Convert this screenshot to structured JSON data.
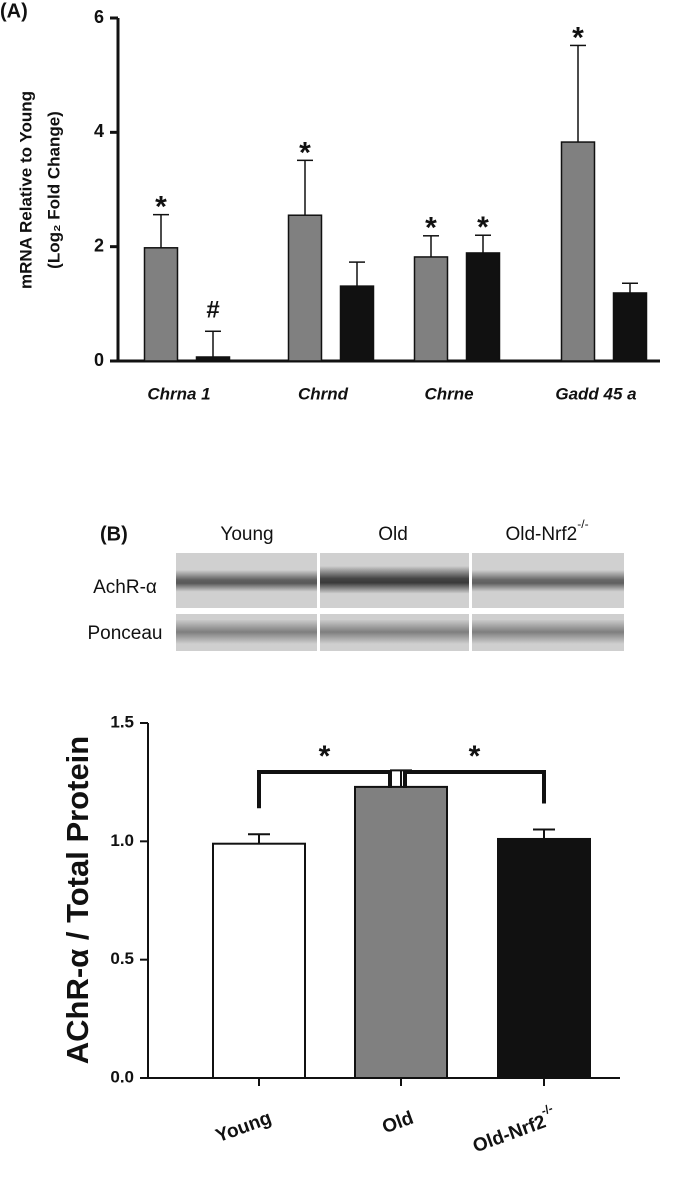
{
  "chart_data": [
    {
      "type": "bar",
      "panel_label": "(A)",
      "y_label": [
        "mRNA Relative to Young",
        "(Log₂ Fold Change)"
      ],
      "categories": [
        "Chrna 1",
        "Chrnd",
        "Chrne",
        "Gadd 45 a"
      ],
      "series": [
        {
          "color": "#808080",
          "values": [
            1.98,
            2.55,
            1.82,
            3.83
          ],
          "errors": [
            0.58,
            0.96,
            0.37,
            1.69
          ],
          "annotations": [
            "*",
            "*",
            "*",
            "*"
          ]
        },
        {
          "color": "#111111",
          "values": [
            0.07,
            1.31,
            1.89,
            1.19
          ],
          "errors": [
            0.45,
            0.42,
            0.31,
            0.17
          ],
          "annotations": [
            "#",
            null,
            "*",
            null
          ]
        }
      ],
      "ylim": [
        0,
        6
      ],
      "yticks": [
        0,
        2,
        4,
        6
      ]
    },
    {
      "type": "bar",
      "y_label": "AChR-α / Total Protein",
      "categories": [
        "Young",
        "Old",
        "Old-Nrf2"
      ],
      "category_superscripts": [
        null,
        null,
        "-/-"
      ],
      "colors": [
        "#ffffff",
        "#808080",
        "#111111"
      ],
      "values": [
        0.99,
        1.23,
        1.01
      ],
      "errors": [
        0.04,
        0.07,
        0.04
      ],
      "brackets": [
        {
          "label": "*"
        },
        {
          "label": "*"
        }
      ],
      "ylim": [
        0,
        1.5
      ],
      "yticks": [
        {
          "value": 0,
          "label": "0.0"
        },
        0.5,
        {
          "value": 1,
          "label": "1.0"
        },
        1.5
      ]
    }
  ],
  "blot": {
    "panel_label": "(B)",
    "lanes": [
      "Young",
      "Old",
      "Old-Nrf2"
    ],
    "lane_superscripts": [
      null,
      null,
      "-/-"
    ],
    "rows": [
      "AchR-α",
      "Ponceau"
    ]
  }
}
